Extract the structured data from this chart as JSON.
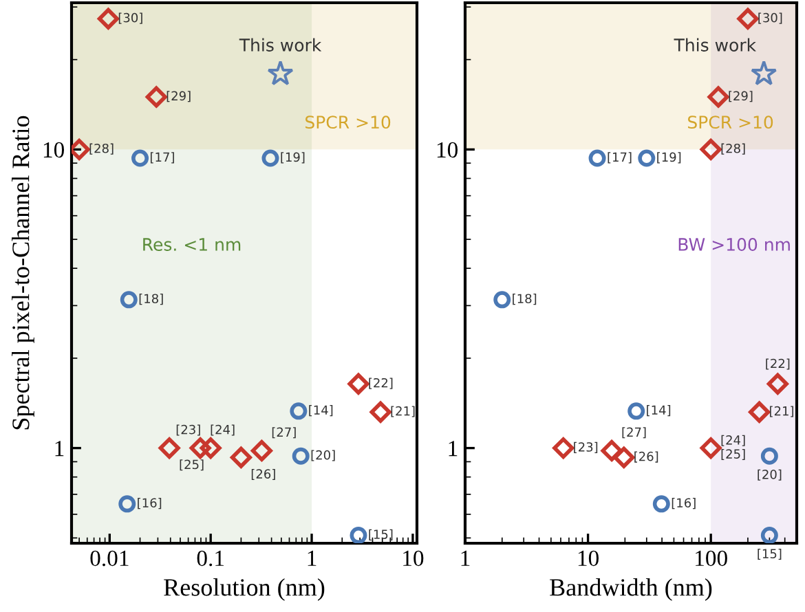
{
  "chart_data": [
    {
      "type": "scatter",
      "xlabel": "Resolution (nm)",
      "ylabel": "Spectral pixel-to-Channel Ratio",
      "log": "xy",
      "xlim": [
        0.0042,
        11
      ],
      "ylim": [
        0.48,
        31
      ],
      "xticks": [
        0.01,
        0.1,
        1,
        10
      ],
      "yticks": [
        1,
        10
      ],
      "bands": [
        {
          "axis": "y",
          "from": 10,
          "to": 31,
          "label": "SPCR >10",
          "color": "#d4a52a"
        },
        {
          "axis": "x",
          "from": 0.0042,
          "to": 1,
          "label": "Res. <1 nm",
          "color": "#5b8c3a"
        }
      ],
      "series": [
        {
          "color": "#4a78b4",
          "marker": "circle",
          "x": [
            0.02,
            0.39,
            0.0155,
            0.74,
            0.78,
            0.0149,
            2.9
          ],
          "values": [
            9.35,
            9.35,
            3.14,
            1.33,
            0.94,
            0.65,
            0.51
          ]
        },
        {
          "color": "#c8372d",
          "marker": "diamond",
          "x": [
            0.0097,
            0.029,
            0.005,
            2.9,
            4.8,
            0.039,
            0.079,
            0.1,
            0.2,
            0.32
          ],
          "values": [
            27.4,
            15,
            10,
            1.64,
            1.32,
            1.0,
            1.0,
            1.0,
            0.93,
            0.98
          ]
        },
        {
          "color": "#5b7fb5",
          "marker": "star",
          "x": [
            0.49
          ],
          "values": [
            17.9
          ]
        }
      ],
      "annotations": [
        {
          "text": "This work",
          "x": 0.49,
          "y": 17.9
        },
        {
          "text": "[17]",
          "x": 0.02,
          "y": 9.35
        },
        {
          "text": "[19]",
          "x": 0.39,
          "y": 9.35
        },
        {
          "text": "[18]",
          "x": 0.0155,
          "y": 3.14
        },
        {
          "text": "[14]",
          "x": 0.74,
          "y": 1.33
        },
        {
          "text": "[20]",
          "x": 0.78,
          "y": 0.94
        },
        {
          "text": "[16]",
          "x": 0.0149,
          "y": 0.65
        },
        {
          "text": "[15]",
          "x": 2.9,
          "y": 0.51
        },
        {
          "text": "[30]",
          "x": 0.0097,
          "y": 27.4
        },
        {
          "text": "[29]",
          "x": 0.029,
          "y": 15
        },
        {
          "text": "[28]",
          "x": 0.005,
          "y": 10
        },
        {
          "text": "[22]",
          "x": 2.9,
          "y": 1.64
        },
        {
          "text": "[21]",
          "x": 4.8,
          "y": 1.32
        },
        {
          "text": "[25]",
          "x": 0.039,
          "y": 1.0
        },
        {
          "text": "[24]",
          "x": 0.079,
          "y": 1.0
        },
        {
          "text": "[23]",
          "x": 0.1,
          "y": 1.0
        },
        {
          "text": "[26]",
          "x": 0.2,
          "y": 0.93
        },
        {
          "text": "[27]",
          "x": 0.32,
          "y": 0.98
        }
      ]
    },
    {
      "type": "scatter",
      "xlabel": "Bandwidth (nm)",
      "log": "xy",
      "xlim": [
        1,
        500
      ],
      "ylim": [
        0.48,
        31
      ],
      "xticks": [
        1,
        10,
        100
      ],
      "yticks": [
        1,
        10
      ],
      "bands": [
        {
          "axis": "y",
          "from": 10,
          "to": 31,
          "label": "SPCR >10",
          "color": "#d4a52a"
        },
        {
          "axis": "x",
          "from": 100,
          "to": 500,
          "label": "BW >100 nm",
          "color": "#8a4cb0"
        }
      ],
      "series": [
        {
          "color": "#4a78b4",
          "marker": "circle",
          "x": [
            11.9,
            30,
            2,
            24.7,
            300,
            39.6,
            300
          ],
          "values": [
            9.35,
            9.35,
            3.14,
            1.33,
            0.94,
            0.65,
            0.51
          ]
        },
        {
          "color": "#c8372d",
          "marker": "diamond",
          "x": [
            200,
            115,
            100,
            350,
            248,
            6.3,
            15.6,
            19.6,
            100
          ],
          "values": [
            27.4,
            15,
            10,
            1.64,
            1.32,
            1.0,
            0.98,
            0.93,
            1.0
          ]
        },
        {
          "color": "#5b7fb5",
          "marker": "star",
          "x": [
            270
          ],
          "values": [
            17.9
          ]
        }
      ],
      "annotations": [
        {
          "text": "This work",
          "x": 270,
          "y": 17.9
        },
        {
          "text": "[17]",
          "x": 11.9,
          "y": 9.35
        },
        {
          "text": "[19]",
          "x": 30,
          "y": 9.35
        },
        {
          "text": "[18]",
          "x": 2,
          "y": 3.14
        },
        {
          "text": "[14]",
          "x": 24.7,
          "y": 1.33
        },
        {
          "text": "[20]",
          "x": 300,
          "y": 0.94
        },
        {
          "text": "[16]",
          "x": 39.6,
          "y": 0.65
        },
        {
          "text": "[15]",
          "x": 300,
          "y": 0.51
        },
        {
          "text": "[30]",
          "x": 200,
          "y": 27.4
        },
        {
          "text": "[29]",
          "x": 115,
          "y": 15
        },
        {
          "text": "[28]",
          "x": 100,
          "y": 10
        },
        {
          "text": "[22]",
          "x": 350,
          "y": 1.64
        },
        {
          "text": "[21]",
          "x": 248,
          "y": 1.32
        },
        {
          "text": "[23]",
          "x": 6.3,
          "y": 1.0
        },
        {
          "text": "[27]",
          "x": 15.6,
          "y": 0.98
        },
        {
          "text": "[26]",
          "x": 19.6,
          "y": 0.93
        },
        {
          "text": "[24]\n[25]",
          "x": 100,
          "y": 1.0
        }
      ]
    }
  ]
}
